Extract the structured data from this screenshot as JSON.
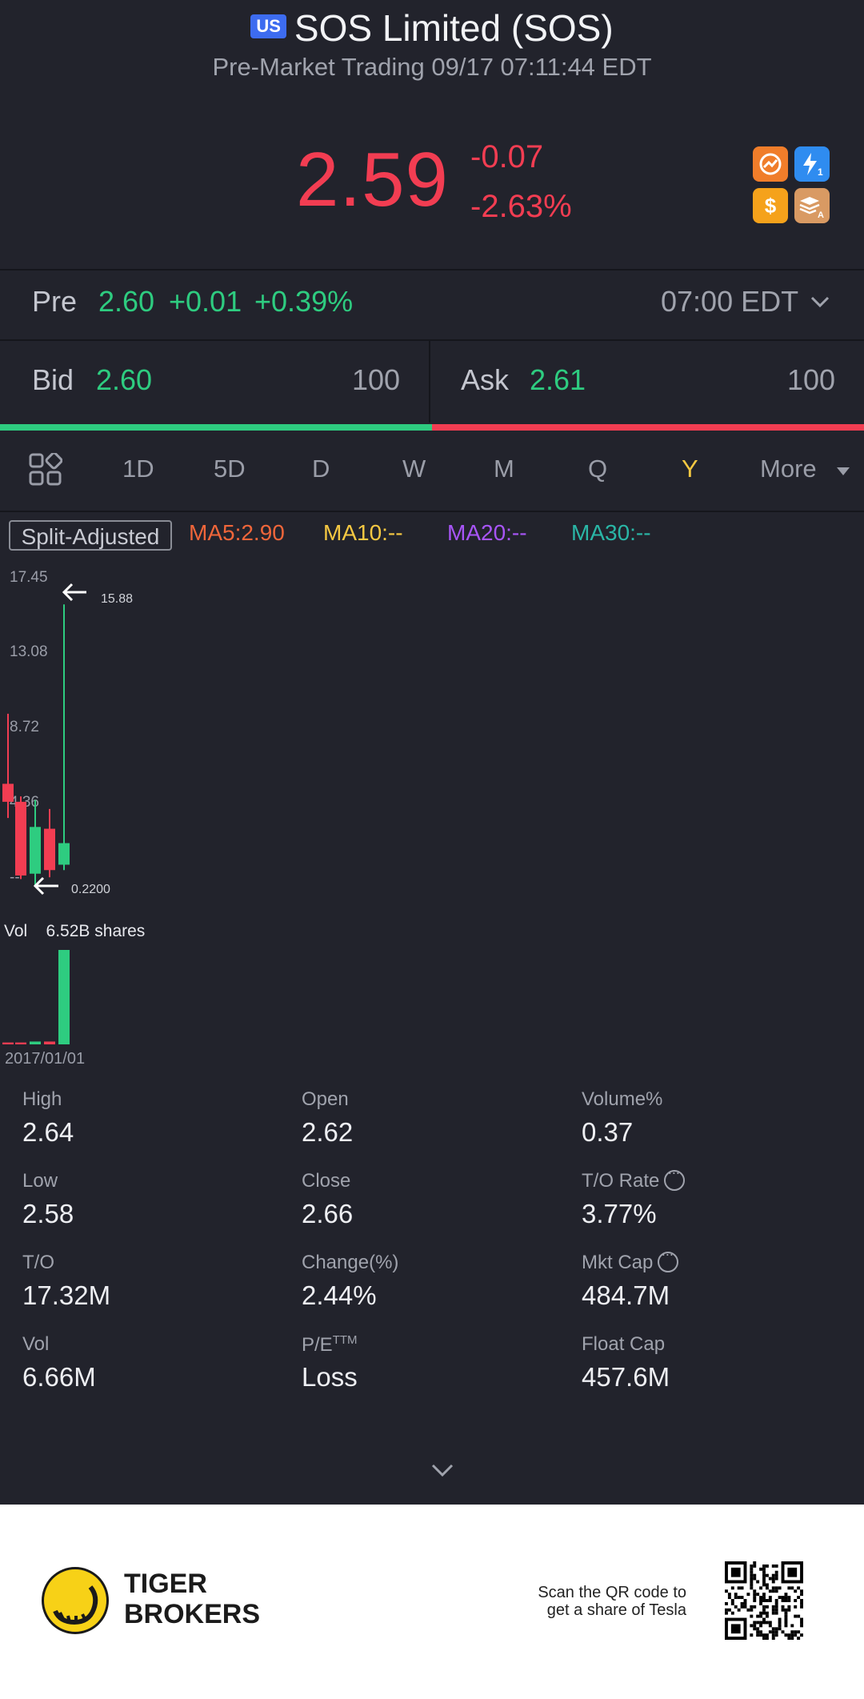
{
  "header": {
    "market_badge": "US",
    "title": "SOS Limited (SOS)",
    "subtitle": "Pre-Market Trading 09/17 07:11:44 EDT",
    "price": "2.59",
    "change": "-0.07",
    "change_pct": "-2.63%",
    "icons": [
      "trend-badge-icon",
      "lightning-1-icon",
      "dollar-badge-icon",
      "layers-a-icon"
    ]
  },
  "pre_market": {
    "label": "Pre",
    "price": "2.60",
    "change": "+0.01",
    "change_pct": "+0.39%",
    "time": "07:00 EDT"
  },
  "bid_ask": {
    "bid_label": "Bid",
    "bid_price": "2.60",
    "bid_size": "100",
    "ask_label": "Ask",
    "ask_price": "2.61",
    "ask_size": "100"
  },
  "tabs": [
    "1D",
    "5D",
    "D",
    "W",
    "M",
    "Q",
    "Y",
    "More"
  ],
  "active_tab": "Y",
  "chart": {
    "split_label": "Split-Adjusted",
    "ma5": "MA5:2.90",
    "ma10": "MA10:--",
    "ma20": "MA20:--",
    "ma30": "MA30:--",
    "y_ticks": [
      "17.45",
      "13.08",
      "8.72",
      "4.36",
      "--"
    ],
    "high_marker": "15.88",
    "low_marker": "0.2200",
    "vol_label": "Vol",
    "vol_value": "6.52B shares",
    "date_label": "2017/01/01"
  },
  "chart_data": {
    "type": "candlestick",
    "period": "Y",
    "ylim": [
      0.22,
      17.45
    ],
    "candles": [
      {
        "open": 5.9,
        "close": 4.9,
        "high": 9.8,
        "low": 4.0,
        "color": "red"
      },
      {
        "open": 4.9,
        "close": 0.8,
        "high": 5.2,
        "low": 0.6,
        "color": "red"
      },
      {
        "open": 0.9,
        "close": 3.5,
        "high": 5.0,
        "low": 0.2,
        "color": "green"
      },
      {
        "open": 3.4,
        "close": 1.1,
        "high": 4.5,
        "low": 0.7,
        "color": "red"
      },
      {
        "open": 1.4,
        "close": 2.6,
        "high": 15.88,
        "low": 1.1,
        "color": "green"
      }
    ],
    "volume_relative": [
      0.02,
      0.02,
      0.03,
      0.03,
      1.0
    ],
    "ma": {
      "MA5": 2.9,
      "MA10": null,
      "MA20": null,
      "MA30": null
    },
    "colors": {
      "up": "#2ecc80",
      "down": "#f23d52",
      "ma5": "#f0663a",
      "ma10": "#f5c842",
      "ma20": "#a855f7",
      "ma30": "#2ab6a6"
    }
  },
  "stats": [
    {
      "label": "High",
      "value": "2.64"
    },
    {
      "label": "Open",
      "value": "2.62"
    },
    {
      "label": "Volume%",
      "value": "0.37"
    },
    {
      "label": "Low",
      "value": "2.58"
    },
    {
      "label": "Close",
      "value": "2.66"
    },
    {
      "label": "T/O Rate",
      "value": "3.77%"
    },
    {
      "label": "T/O",
      "value": "17.32M"
    },
    {
      "label": "Change(%)",
      "value": "2.44%"
    },
    {
      "label": "Mkt Cap",
      "value": "484.7M"
    },
    {
      "label": "Vol",
      "value": "6.66M"
    },
    {
      "label": "P/E",
      "label_sup": "TTM",
      "value": "Loss"
    },
    {
      "label": "Float Cap",
      "value": "457.6M"
    }
  ],
  "footer": {
    "brand_line1": "TIGER",
    "brand_line2": "BROKERS",
    "scan_line1": "Scan the QR code to",
    "scan_line2": "get a share of Tesla"
  }
}
